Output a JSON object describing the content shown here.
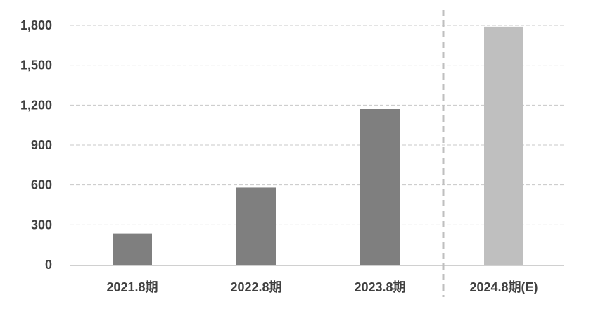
{
  "chart_data": {
    "type": "bar",
    "categories": [
      "2021.8期",
      "2022.8期",
      "2023.8期",
      "2024.8期(E)"
    ],
    "values": [
      235,
      580,
      1170,
      1790
    ],
    "forecast_index": 3,
    "ylim": [
      0,
      1800
    ],
    "yticks": [
      0,
      300,
      600,
      900,
      1200,
      1500,
      1800
    ],
    "ytick_labels": [
      "0",
      "300",
      "600",
      "900",
      "1,200",
      "1,500",
      "1,800"
    ],
    "title": "",
    "xlabel": "",
    "ylabel": "",
    "grid": true,
    "legend": "none",
    "colors": {
      "actual": "#7f7f7f",
      "forecast": "#bfbfbf",
      "grid": "#c8c8c8",
      "axis": "#d0d0d0",
      "divider": "#bfbfbf",
      "text": "#404040"
    }
  }
}
